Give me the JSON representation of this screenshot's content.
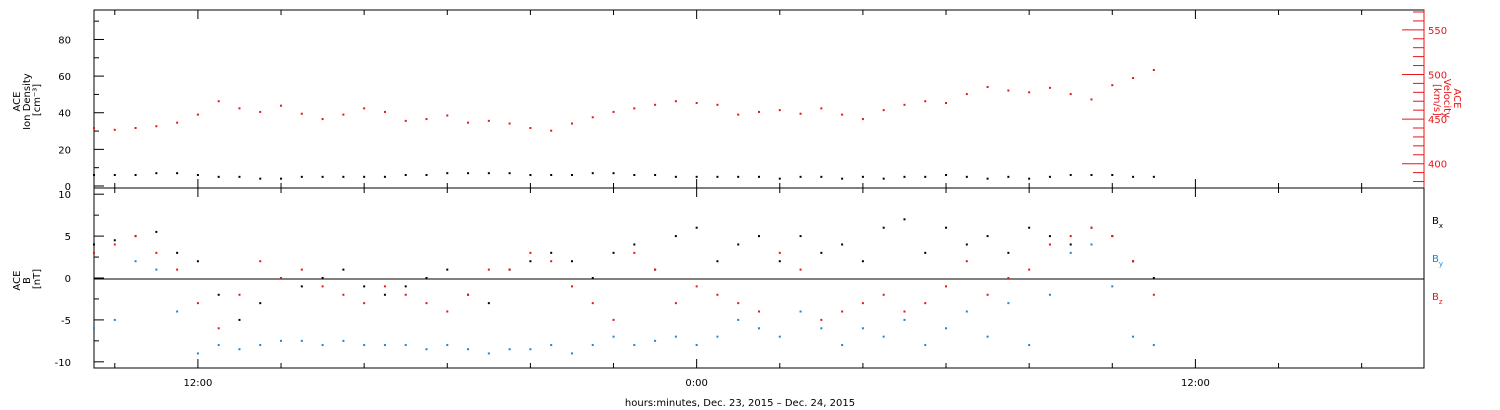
{
  "figure": {
    "footer_label": "hours:minutes, Dec. 23, 2015 – Dec. 24, 2015",
    "colors": {
      "black": "#000000",
      "red": "#e8141a",
      "blue": "#1a86d6"
    }
  },
  "chart_data": [
    {
      "type": "scatter",
      "panel": "top",
      "left_axis": {
        "label_lines": [
          "ACE",
          "Ion Density",
          "[cm⁻³]"
        ],
        "ylim": [
          0,
          95
        ],
        "ticks": [
          0,
          20,
          40,
          60,
          80
        ],
        "tick_labels": [
          "0",
          "20",
          "40",
          "60",
          "80"
        ]
      },
      "right_axis": {
        "label_lines": [
          "ACE",
          "Velocity",
          "[km/s]"
        ],
        "ylim": [
          375,
          570
        ],
        "ticks": [
          400,
          450,
          500,
          550
        ],
        "tick_labels": [
          "400",
          "450",
          "500",
          "550"
        ],
        "color": "#e8141a"
      },
      "x_axis": {
        "unit": "hours since Dec. 23, 2015 00:00",
        "xlim": [
          9.5,
          41.5
        ],
        "tick_labels": [
          "12:00",
          "0:00",
          "12:00"
        ],
        "tick_positions": [
          12,
          24,
          36
        ],
        "minor_step": 2
      },
      "grid": false,
      "series": [
        {
          "axis": "left",
          "color": "#000000",
          "x": [
            9.5,
            10,
            10.5,
            11,
            11.5,
            12,
            12.5,
            13,
            13.5,
            14,
            14.5,
            15,
            15.5,
            16,
            16.5,
            17,
            17.5,
            18,
            18.5,
            19,
            19.5,
            20,
            20.5,
            21,
            21.5,
            22,
            22.5,
            23,
            23.5,
            24,
            24.5,
            25,
            25.5,
            26,
            26.5,
            27,
            27.5,
            28,
            28.5,
            29,
            29.5,
            30,
            30.5,
            31,
            31.5,
            32,
            32.5,
            33,
            33.5,
            34,
            34.5,
            35
          ],
          "values": [
            6,
            6,
            6,
            7,
            7,
            6,
            5,
            5,
            4,
            4,
            5,
            5,
            5,
            5,
            5,
            6,
            6,
            7,
            7,
            7,
            7,
            6,
            6,
            6,
            7,
            7,
            6,
            6,
            5,
            5,
            5,
            5,
            5,
            4,
            5,
            5,
            4,
            5,
            4,
            5,
            5,
            6,
            5,
            4,
            5,
            4,
            5,
            6,
            6,
            6,
            5,
            5
          ]
        },
        {
          "axis": "right",
          "color": "#e8141a",
          "x": [
            9.5,
            10,
            10.5,
            11,
            11.5,
            12,
            12.5,
            13,
            13.5,
            14,
            14.5,
            15,
            15.5,
            16,
            16.5,
            17,
            17.5,
            18,
            18.5,
            19,
            19.5,
            20,
            20.5,
            21,
            21.5,
            22,
            22.5,
            23,
            23.5,
            24,
            24.5,
            25,
            25.5,
            26,
            26.5,
            27,
            27.5,
            28,
            28.5,
            29,
            29.5,
            30,
            30.5,
            31,
            31.5,
            32,
            32.5,
            33,
            33.5,
            34,
            34.5,
            35
          ],
          "values": [
            440,
            438,
            440,
            442,
            446,
            455,
            470,
            462,
            458,
            465,
            456,
            450,
            455,
            462,
            458,
            448,
            450,
            454,
            446,
            448,
            445,
            440,
            437,
            445,
            452,
            458,
            462,
            466,
            470,
            468,
            466,
            455,
            458,
            460,
            456,
            462,
            455,
            450,
            460,
            466,
            470,
            468,
            478,
            486,
            482,
            480,
            485,
            478,
            472,
            488,
            496,
            505
          ]
        }
      ]
    },
    {
      "type": "scatter",
      "panel": "bottom",
      "left_axis": {
        "label_lines": [
          "ACE",
          "B",
          "[nT]"
        ],
        "ylim": [
          -10.5,
          10.5
        ],
        "ticks": [
          -10,
          -5,
          0,
          5,
          10
        ],
        "tick_labels": [
          "-10",
          "-5",
          "0",
          "5",
          "10"
        ]
      },
      "x_axis": {
        "unit": "hours since Dec. 23, 2015 00:00",
        "xlim": [
          9.5,
          41.5
        ],
        "tick_labels": [
          "12:00",
          "0:00",
          "12:00"
        ],
        "tick_positions": [
          12,
          24,
          36
        ],
        "minor_step": 2
      },
      "zero_line": true,
      "grid": false,
      "series": [
        {
          "name": "B",
          "subscript": "x",
          "color": "#000000",
          "x": [
            9.5,
            10,
            10.5,
            11,
            11.5,
            12,
            12.5,
            13,
            13.5,
            14,
            14.5,
            15,
            15.5,
            16,
            16.5,
            17,
            17.5,
            18,
            18.5,
            19,
            19.5,
            20,
            20.5,
            21,
            21.5,
            22,
            22.5,
            23,
            23.5,
            24,
            24.5,
            25,
            25.5,
            26,
            26.5,
            27,
            27.5,
            28,
            28.5,
            29,
            29.5,
            30,
            30.5,
            31,
            31.5,
            32,
            32.5,
            33,
            33.5,
            34,
            34.5,
            35
          ],
          "values": [
            4,
            4.5,
            5,
            5.5,
            3,
            2,
            -2,
            -5,
            -3,
            0,
            -1,
            0,
            1,
            -1,
            -2,
            -1,
            0,
            1,
            -2,
            -3,
            1,
            2,
            3,
            2,
            0,
            3,
            4,
            1,
            5,
            6,
            2,
            4,
            5,
            2,
            5,
            3,
            4,
            2,
            6,
            7,
            3,
            6,
            4,
            5,
            3,
            6,
            5,
            4,
            6,
            5,
            2,
            0
          ]
        },
        {
          "name": "B",
          "subscript": "y",
          "color": "#1a86d6",
          "x": [
            9.5,
            10,
            10.5,
            11,
            11.5,
            12,
            12.5,
            13,
            13.5,
            14,
            14.5,
            15,
            15.5,
            16,
            16.5,
            17,
            17.5,
            18,
            18.5,
            19,
            19.5,
            20,
            20.5,
            21,
            21.5,
            22,
            22.5,
            23,
            23.5,
            24,
            24.5,
            25,
            25.5,
            26,
            26.5,
            27,
            27.5,
            28,
            28.5,
            29,
            29.5,
            30,
            30.5,
            31,
            31.5,
            32,
            32.5,
            33,
            33.5,
            34,
            34.5,
            35
          ],
          "values": [
            -6,
            -5,
            2,
            1,
            -4,
            -9,
            -8,
            -8.5,
            -8,
            -7.5,
            -7.5,
            -8,
            -7.5,
            -8,
            -8,
            -8,
            -8.5,
            -8,
            -8.5,
            -9,
            -8.5,
            -8.5,
            -8,
            -9,
            -8,
            -7,
            -8,
            -7.5,
            -7,
            -8,
            -7,
            -5,
            -6,
            -7,
            -4,
            -6,
            -8,
            -6,
            -7,
            -5,
            -8,
            -6,
            -4,
            -7,
            -3,
            -8,
            -2,
            3,
            4,
            -1,
            -7,
            -8
          ]
        },
        {
          "name": "B",
          "subscript": "z",
          "color": "#e8141a",
          "x": [
            9.5,
            10,
            10.5,
            11,
            11.5,
            12,
            12.5,
            13,
            13.5,
            14,
            14.5,
            15,
            15.5,
            16,
            16.5,
            17,
            17.5,
            18,
            18.5,
            19,
            19.5,
            20,
            20.5,
            21,
            21.5,
            22,
            22.5,
            23,
            23.5,
            24,
            24.5,
            25,
            25.5,
            26,
            26.5,
            27,
            27.5,
            28,
            28.5,
            29,
            29.5,
            30,
            30.5,
            31,
            31.5,
            32,
            32.5,
            33,
            33.5,
            34,
            34.5,
            35
          ],
          "values": [
            3,
            4,
            5,
            3,
            1,
            -3,
            -6,
            -2,
            2,
            0,
            1,
            -1,
            -2,
            -3,
            -1,
            -2,
            -3,
            -4,
            -2,
            1,
            1,
            3,
            2,
            -1,
            -3,
            -5,
            3,
            1,
            -3,
            -1,
            -2,
            -3,
            -4,
            3,
            1,
            -5,
            -4,
            -3,
            -2,
            -4,
            -3,
            -1,
            2,
            -2,
            0,
            1,
            4,
            5,
            6,
            5,
            2,
            -2
          ]
        }
      ]
    }
  ]
}
